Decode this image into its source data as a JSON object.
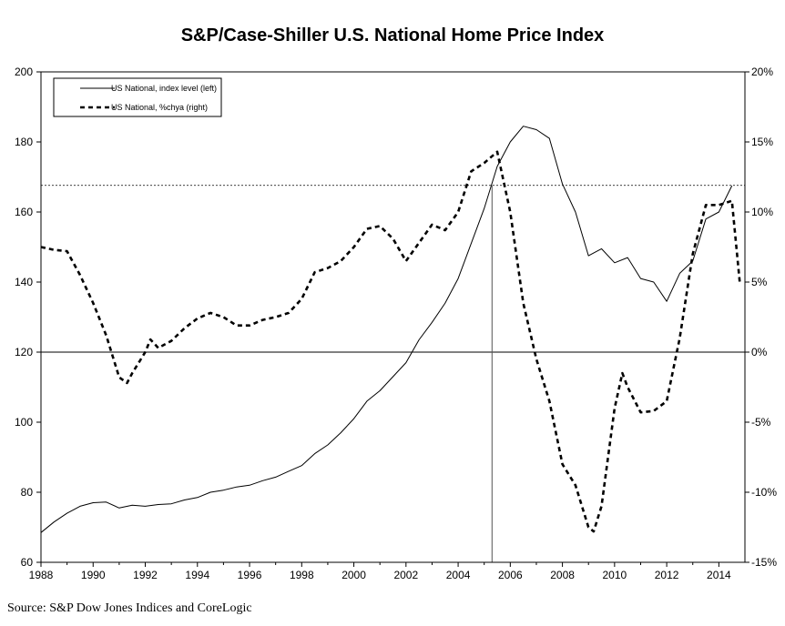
{
  "title": "S&P/Case-Shiller U.S. National Home Price Index",
  "source": "Source: S&P Dow Jones Indices and CoreLogic",
  "colors": {
    "line": "#000000",
    "background": "#ffffff"
  },
  "chart_data": {
    "type": "line",
    "title": "S&P/Case-Shiller U.S. National Home Price Index",
    "xlim": [
      1988,
      2015
    ],
    "ylim_left": [
      60,
      200
    ],
    "ylim_right": [
      -15,
      20
    ],
    "x_ticks": [
      1988,
      1990,
      1992,
      1994,
      1996,
      1998,
      2000,
      2002,
      2004,
      2006,
      2008,
      2010,
      2012,
      2014
    ],
    "x_tick_labels": [
      "1988",
      "1990",
      "1992",
      "1994",
      "1996",
      "1998",
      "2000",
      "2002",
      "2004",
      "2006",
      "2008",
      "2010",
      "2012",
      "2014"
    ],
    "y_left_ticks": [
      60,
      80,
      100,
      120,
      140,
      160,
      180,
      200
    ],
    "y_left_tick_labels": [
      "60",
      "80",
      "100",
      "120",
      "140",
      "160",
      "180",
      "200"
    ],
    "y_right_ticks": [
      -15,
      -10,
      -5,
      0,
      5,
      10,
      15,
      20
    ],
    "y_right_tick_labels": [
      "-15%",
      "-10%",
      "-5%",
      "0%",
      "5%",
      "10%",
      "15%",
      "20%"
    ],
    "grid": false,
    "legend_position": "top-left",
    "reference_lines": {
      "horizontal_left_value": 167.6,
      "vertical_x": 2005.3,
      "zero_line_right": 0
    },
    "series": [
      {
        "name": "US National, index level (left)",
        "axis": "left",
        "style": "solid",
        "x": [
          1988.0,
          1988.5,
          1989.0,
          1989.5,
          1990.0,
          1990.5,
          1991.0,
          1991.5,
          1992.0,
          1992.5,
          1993.0,
          1993.5,
          1994.0,
          1994.5,
          1995.0,
          1995.5,
          1996.0,
          1996.5,
          1997.0,
          1997.5,
          1998.0,
          1998.5,
          1999.0,
          1999.5,
          2000.0,
          2000.5,
          2001.0,
          2001.5,
          2002.0,
          2002.5,
          2003.0,
          2003.5,
          2004.0,
          2004.5,
          2005.0,
          2005.5,
          2006.0,
          2006.5,
          2007.0,
          2007.5,
          2008.0,
          2008.5,
          2009.0,
          2009.5,
          2010.0,
          2010.5,
          2011.0,
          2011.5,
          2012.0,
          2012.5,
          2013.0,
          2013.5,
          2014.0,
          2014.5
        ],
        "values": [
          68.5,
          71.5,
          74.0,
          76.0,
          77.0,
          77.2,
          75.5,
          76.3,
          76.0,
          76.5,
          76.7,
          77.8,
          78.5,
          80.0,
          80.6,
          81.5,
          82.0,
          83.3,
          84.3,
          86.0,
          87.6,
          91.0,
          93.5,
          97.0,
          101.0,
          106.0,
          109.0,
          113.0,
          117.0,
          123.5,
          128.5,
          134.0,
          141.0,
          151.0,
          161.0,
          173.0,
          180.0,
          184.5,
          183.5,
          181.0,
          168.0,
          160.0,
          147.5,
          149.5,
          145.5,
          147.0,
          141.0,
          140.0,
          134.5,
          142.5,
          146.0,
          158.0,
          160.0,
          167.5
        ]
      },
      {
        "name": "US National, %chya (right)",
        "axis": "right",
        "style": "dashed",
        "x": [
          1988.0,
          1988.5,
          1989.0,
          1989.5,
          1990.0,
          1990.5,
          1991.0,
          1991.3,
          1991.5,
          1992.0,
          1992.2,
          1992.5,
          1993.0,
          1993.5,
          1994.0,
          1994.5,
          1995.0,
          1995.5,
          1996.0,
          1996.5,
          1997.0,
          1997.5,
          1998.0,
          1998.5,
          1999.0,
          1999.5,
          2000.0,
          2000.5,
          2001.0,
          2001.5,
          2002.0,
          2002.5,
          2003.0,
          2003.5,
          2004.0,
          2004.5,
          2005.0,
          2005.5,
          2006.0,
          2006.5,
          2007.0,
          2007.5,
          2008.0,
          2008.5,
          2009.0,
          2009.2,
          2009.5,
          2010.0,
          2010.3,
          2010.5,
          2011.0,
          2011.5,
          2012.0,
          2012.5,
          2013.0,
          2013.5,
          2014.0,
          2014.5,
          2014.8
        ],
        "values": [
          7.5,
          7.3,
          7.2,
          5.5,
          3.5,
          1.2,
          -1.8,
          -2.2,
          -1.5,
          0.0,
          0.9,
          0.3,
          0.8,
          1.7,
          2.4,
          2.8,
          2.5,
          1.9,
          1.9,
          2.3,
          2.5,
          2.8,
          3.8,
          5.7,
          6.0,
          6.5,
          7.5,
          8.8,
          9.0,
          8.1,
          6.5,
          7.8,
          9.1,
          8.7,
          10.0,
          12.9,
          13.5,
          14.3,
          10.0,
          3.5,
          -0.5,
          -3.5,
          -8.0,
          -9.5,
          -12.5,
          -12.8,
          -11.0,
          -4.0,
          -1.5,
          -2.5,
          -4.3,
          -4.2,
          -3.5,
          1.0,
          7.0,
          10.5,
          10.5,
          10.8,
          5.0
        ]
      }
    ]
  }
}
